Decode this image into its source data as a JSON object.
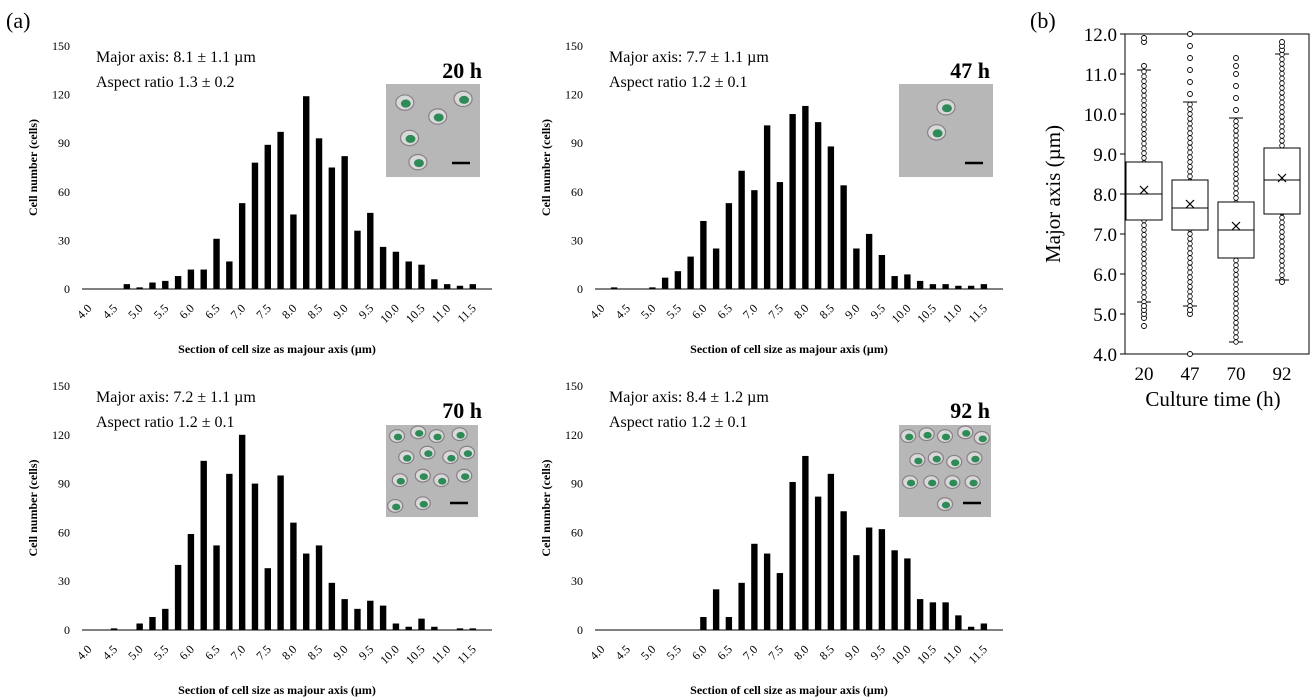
{
  "figure": {
    "label_a": "(a)",
    "label_b": "(b)"
  },
  "chart_data": [
    {
      "type": "bar",
      "panel": "a",
      "time_label": "20 h",
      "annotations": [
        "Major axis: 8.1 ± 1.1 µm",
        "Aspect ratio 1.3 ± 0.2"
      ],
      "xlabel": "Section of cell size as majour axis (µm)",
      "ylabel": "Cell number (cells)",
      "ylim": [
        0,
        150
      ],
      "yticks": [
        0,
        30,
        60,
        90,
        120,
        150
      ],
      "xtick_labels": [
        "4.0",
        "4.5",
        "5.0",
        "5.5",
        "6.0",
        "6.5",
        "7.0",
        "7.5",
        "8.0",
        "8.5",
        "9.0",
        "9.5",
        "10.0",
        "10.5",
        "11.0",
        "11.5"
      ],
      "bin_width": 0.25,
      "x": [
        4.0,
        4.25,
        4.5,
        4.75,
        5.0,
        5.25,
        5.5,
        5.75,
        6.0,
        6.25,
        6.5,
        6.75,
        7.0,
        7.25,
        7.5,
        7.75,
        8.0,
        8.25,
        8.5,
        8.75,
        9.0,
        9.25,
        9.5,
        9.75,
        10.0,
        10.25,
        10.5,
        10.75,
        11.0,
        11.25,
        11.5,
        11.75
      ],
      "values": [
        0,
        0,
        0,
        3,
        1,
        4,
        5,
        8,
        12,
        12,
        31,
        17,
        53,
        78,
        89,
        97,
        46,
        119,
        93,
        75,
        82,
        36,
        47,
        26,
        23,
        17,
        15,
        6,
        3,
        2,
        3,
        0
      ],
      "inset": "micrograph"
    },
    {
      "type": "bar",
      "panel": "a",
      "time_label": "47 h",
      "annotations": [
        "Major axis: 7.7 ± 1.1 µm",
        "Aspect ratio 1.2 ± 0.1"
      ],
      "xlabel": "Section of cell size as majour axis (µm)",
      "ylabel": "Cell number (cells)",
      "ylim": [
        0,
        150
      ],
      "yticks": [
        0,
        30,
        60,
        90,
        120,
        150
      ],
      "xtick_labels": [
        "4.0",
        "4.5",
        "5.0",
        "5.5",
        "6.0",
        "6.5",
        "7.0",
        "7.5",
        "8.0",
        "8.5",
        "9.0",
        "9.5",
        "10.0",
        "10.5",
        "11.0",
        "11.5"
      ],
      "bin_width": 0.25,
      "x": [
        4.0,
        4.25,
        4.5,
        4.75,
        5.0,
        5.25,
        5.5,
        5.75,
        6.0,
        6.25,
        6.5,
        6.75,
        7.0,
        7.25,
        7.5,
        7.75,
        8.0,
        8.25,
        8.5,
        8.75,
        9.0,
        9.25,
        9.5,
        9.75,
        10.0,
        10.25,
        10.5,
        10.75,
        11.0,
        11.25,
        11.5,
        11.75
      ],
      "values": [
        0,
        1,
        0,
        0,
        1,
        7,
        11,
        20,
        42,
        25,
        53,
        73,
        61,
        101,
        66,
        108,
        113,
        103,
        88,
        64,
        25,
        34,
        21,
        8,
        9,
        5,
        3,
        3,
        2,
        2,
        3,
        0
      ],
      "inset": "micrograph"
    },
    {
      "type": "bar",
      "panel": "a",
      "time_label": "70 h",
      "annotations": [
        "Major axis: 7.2 ± 1.1 µm",
        "Aspect ratio 1.2 ± 0.1"
      ],
      "xlabel": "Section of cell size as majour axis (µm)",
      "ylabel": "Cell number (cells)",
      "ylim": [
        0,
        150
      ],
      "yticks": [
        0,
        30,
        60,
        90,
        120,
        150
      ],
      "xtick_labels": [
        "4.0",
        "4.5",
        "5.0",
        "5.5",
        "6.0",
        "6.5",
        "7.0",
        "7.5",
        "8.0",
        "8.5",
        "9.0",
        "9.5",
        "10.0",
        "10.5",
        "11.0",
        "11.5"
      ],
      "bin_width": 0.25,
      "x": [
        4.0,
        4.25,
        4.5,
        4.75,
        5.0,
        5.25,
        5.5,
        5.75,
        6.0,
        6.25,
        6.5,
        6.75,
        7.0,
        7.25,
        7.5,
        7.75,
        8.0,
        8.25,
        8.5,
        8.75,
        9.0,
        9.25,
        9.5,
        9.75,
        10.0,
        10.25,
        10.5,
        10.75,
        11.0,
        11.25,
        11.5,
        11.75
      ],
      "values": [
        0,
        0,
        1,
        0,
        4,
        8,
        13,
        40,
        59,
        104,
        52,
        96,
        120,
        90,
        38,
        95,
        66,
        47,
        52,
        29,
        19,
        13,
        18,
        15,
        4,
        2,
        7,
        2,
        0,
        1,
        1,
        0
      ],
      "inset": "micrograph"
    },
    {
      "type": "bar",
      "panel": "a",
      "time_label": "92 h",
      "annotations": [
        "Major axis: 8.4 ± 1.2 µm",
        "Aspect ratio 1.2 ± 0.1"
      ],
      "xlabel": "Section of cell size as majour axis (µm)",
      "ylabel": "Cell number (cells)",
      "ylim": [
        0,
        150
      ],
      "yticks": [
        0,
        30,
        60,
        90,
        120,
        150
      ],
      "xtick_labels": [
        "4.0",
        "4.5",
        "5.0",
        "5.5",
        "6.0",
        "6.5",
        "7.0",
        "7.5",
        "8.0",
        "8.5",
        "9.0",
        "9.5",
        "10.0",
        "10.5",
        "11.0",
        "11.5"
      ],
      "bin_width": 0.25,
      "x": [
        4.0,
        4.25,
        4.5,
        4.75,
        5.0,
        5.25,
        5.5,
        5.75,
        6.0,
        6.25,
        6.5,
        6.75,
        7.0,
        7.25,
        7.5,
        7.75,
        8.0,
        8.25,
        8.5,
        8.75,
        9.0,
        9.25,
        9.5,
        9.75,
        10.0,
        10.25,
        10.5,
        10.75,
        11.0,
        11.25,
        11.5,
        11.75
      ],
      "values": [
        0,
        0,
        0,
        0,
        0,
        0,
        0,
        0,
        8,
        25,
        8,
        29,
        53,
        47,
        35,
        91,
        107,
        82,
        96,
        73,
        46,
        63,
        62,
        49,
        44,
        19,
        17,
        17,
        9,
        2,
        4,
        0
      ],
      "inset": "micrograph"
    },
    {
      "type": "box",
      "panel": "b",
      "xlabel": "Culture time (h)",
      "ylabel": "Major axis (µm)",
      "ylim": [
        4.0,
        12.0
      ],
      "yticks": [
        "4.0",
        "5.0",
        "6.0",
        "7.0",
        "8.0",
        "9.0",
        "10.0",
        "11.0",
        "12.0"
      ],
      "categories": [
        "20",
        "47",
        "70",
        "92"
      ],
      "boxes": [
        {
          "q1": 7.35,
          "median": 8.0,
          "q3": 8.8,
          "mean": 8.1,
          "whisker_low": 5.3,
          "whisker_high": 11.1,
          "outliers_low": [
            4.7,
            4.9,
            5.0,
            5.1,
            5.2
          ],
          "outliers_high": [
            11.2,
            11.8,
            11.9
          ]
        },
        {
          "q1": 7.1,
          "median": 7.65,
          "q3": 8.35,
          "mean": 7.75,
          "whisker_low": 5.2,
          "whisker_high": 10.3,
          "outliers_low": [
            4.0,
            5.0,
            5.1
          ],
          "outliers_high": [
            10.5,
            10.8,
            11.1,
            11.4,
            11.7,
            12.0
          ]
        },
        {
          "q1": 6.4,
          "median": 7.1,
          "q3": 7.8,
          "mean": 7.2,
          "whisker_low": 4.3,
          "whisker_high": 9.9,
          "outliers_low": [],
          "outliers_high": [
            10.1,
            10.4,
            10.7,
            11.0,
            11.2,
            11.4
          ]
        },
        {
          "q1": 7.5,
          "median": 8.35,
          "q3": 9.15,
          "mean": 8.4,
          "whisker_low": 5.85,
          "whisker_high": 11.5,
          "outliers_low": [
            5.8
          ],
          "outliers_high": [
            11.6,
            11.7,
            11.8
          ]
        }
      ]
    }
  ]
}
